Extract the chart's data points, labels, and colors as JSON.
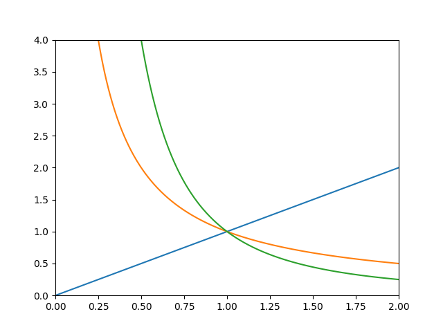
{
  "xlim": [
    0.0,
    2.0
  ],
  "ylim": [
    0.0,
    4.0
  ],
  "x_start": 0.001,
  "x_end": 2.0,
  "num_points": 1000,
  "line_x_color": "#1f77b4",
  "line_inv_x_color": "#ff7f0e",
  "line_inv_x2_color": "#2ca02c",
  "linewidth": 1.5,
  "figsize": [
    6.4,
    4.8
  ],
  "dpi": 100
}
